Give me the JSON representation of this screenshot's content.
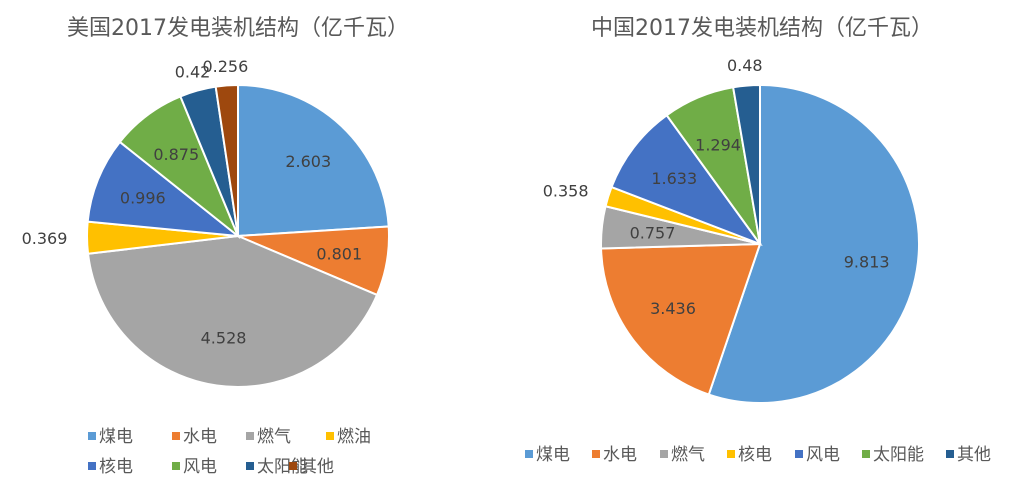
{
  "chart_data": [
    {
      "type": "pie",
      "title": "美国2017发电装机结构（亿千瓦）",
      "categories": [
        "煤电",
        "水电",
        "燃气",
        "燃油",
        "核电",
        "风电",
        "太阳能",
        "其他"
      ],
      "values": [
        2.603,
        0.801,
        4.528,
        0.369,
        0.996,
        0.875,
        0.42,
        0.256
      ],
      "labels": [
        "2.603",
        "0.801",
        "4.528",
        "0.369",
        "0.996",
        "0.875",
        "0.42",
        "0.256"
      ],
      "colors": [
        "#5B9BD5",
        "#ED7D31",
        "#A5A5A5",
        "#FFC000",
        "#4472C4",
        "#70AD47",
        "#255E91",
        "#9E480E"
      ],
      "legend": "bottom"
    },
    {
      "type": "pie",
      "title": "中国2017发电装机结构（亿千瓦）",
      "categories": [
        "煤电",
        "水电",
        "燃气",
        "核电",
        "风电",
        "太阳能",
        "其他"
      ],
      "values": [
        9.813,
        3.436,
        0.757,
        0.358,
        1.633,
        1.294,
        0.48
      ],
      "labels": [
        "9.813",
        "3.436",
        "0.757",
        "0.358",
        "1.633",
        "1.294",
        "0.48"
      ],
      "colors": [
        "#5B9BD5",
        "#ED7D31",
        "#A5A5A5",
        "#FFC000",
        "#4472C4",
        "#70AD47",
        "#255E91"
      ],
      "legend": "bottom"
    }
  ]
}
